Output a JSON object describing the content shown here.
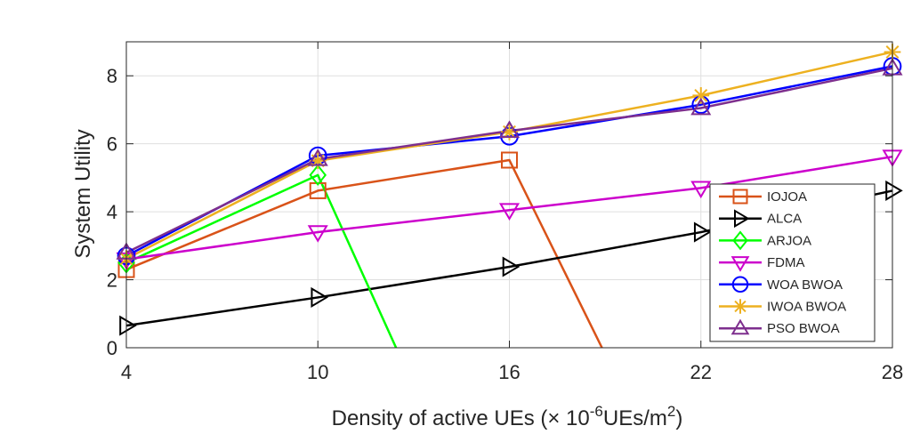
{
  "chart_data": {
    "type": "line",
    "title": "",
    "xlabel": "Density of active UEs (× 10-6UEs/m2)",
    "xlabel_parts": {
      "prefix": "Density of active UEs (",
      "times": "×",
      "base": " 10",
      "exp1": "-6",
      "mid": "UEs/m",
      "exp2": "2",
      "suffix": ")"
    },
    "ylabel": "System Utility",
    "xlim": [
      4,
      28
    ],
    "ylim": [
      0,
      9
    ],
    "xticks": [
      4,
      10,
      16,
      22,
      28
    ],
    "yticks": [
      0,
      2,
      4,
      6,
      8
    ],
    "grid": true,
    "legend_position": "bottom-right",
    "series": [
      {
        "name": "IOJOA",
        "color": "#D95319",
        "marker": "square",
        "x": [
          4,
          10,
          16,
          18.9
        ],
        "y": [
          2.3,
          4.62,
          5.52,
          0
        ]
      },
      {
        "name": "ALCA",
        "color": "#000000",
        "marker": "triangle-right",
        "x": [
          4,
          10,
          16,
          22,
          28
        ],
        "y": [
          0.65,
          1.48,
          2.38,
          3.4,
          4.62
        ]
      },
      {
        "name": "ARJOA",
        "color": "#00FF00",
        "marker": "diamond",
        "x": [
          4,
          10,
          12.45
        ],
        "y": [
          2.5,
          5.08,
          0
        ]
      },
      {
        "name": "FDMA",
        "color": "#CC00CC",
        "marker": "triangle-down",
        "x": [
          4,
          10,
          16,
          22,
          28
        ],
        "y": [
          2.6,
          3.4,
          4.05,
          4.7,
          5.62
        ]
      },
      {
        "name": "WOA BWOA",
        "color": "#0000FF",
        "marker": "circle",
        "x": [
          4,
          10,
          16,
          22,
          28
        ],
        "y": [
          2.7,
          5.65,
          6.22,
          7.15,
          8.28
        ]
      },
      {
        "name": "IWOA BWOA",
        "color": "#EDB120",
        "marker": "asterisk",
        "x": [
          4,
          10,
          16,
          22,
          28
        ],
        "y": [
          2.62,
          5.5,
          6.35,
          7.42,
          8.7
        ]
      },
      {
        "name": "PSO BWOA",
        "color": "#7E2F8E",
        "marker": "triangle-up",
        "x": [
          4,
          10,
          16,
          22,
          28
        ],
        "y": [
          2.8,
          5.55,
          6.38,
          7.05,
          8.22
        ]
      }
    ]
  }
}
